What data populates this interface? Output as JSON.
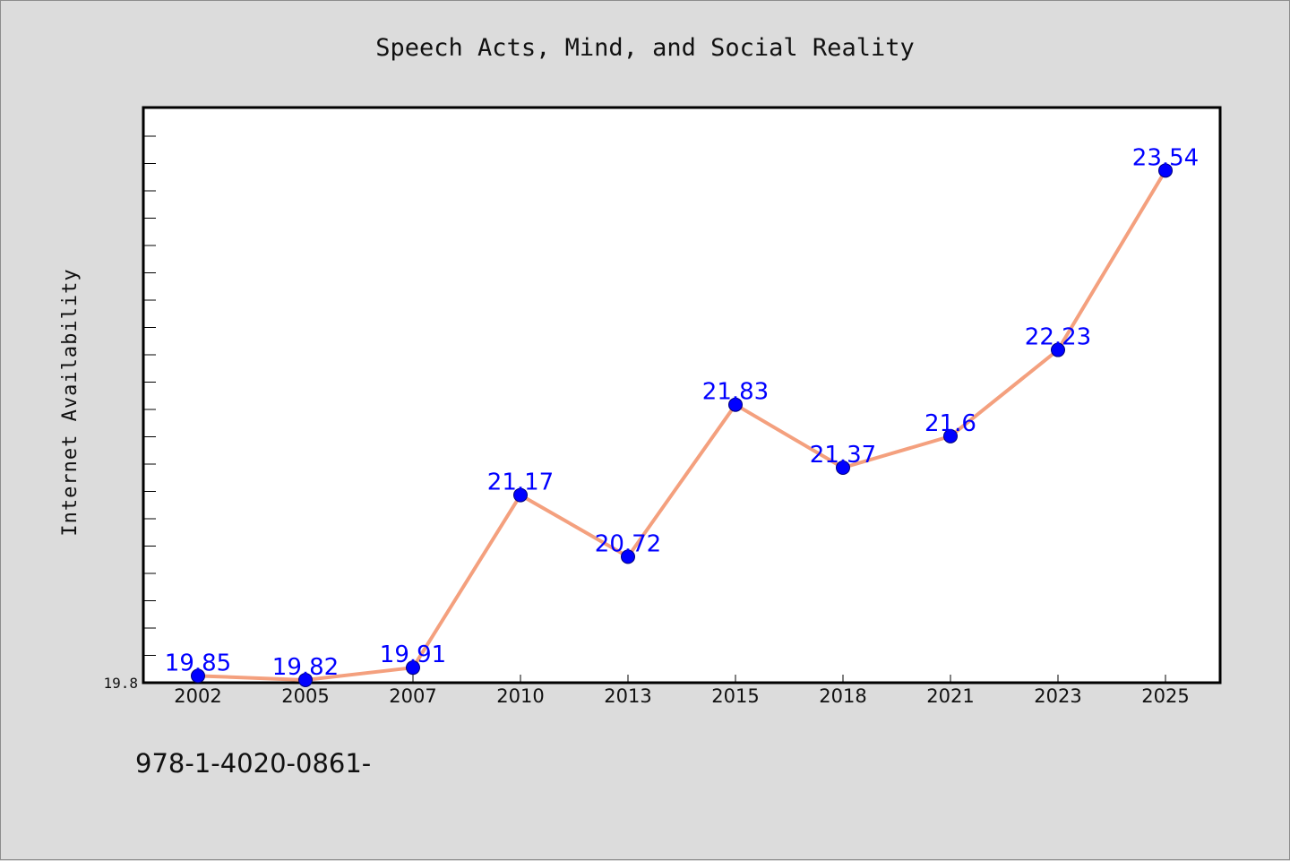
{
  "footer": {
    "text": "978-1-4020-0861-"
  },
  "colors": {
    "background": "#dcdcdc",
    "plot_background": "#ffffff",
    "line": "#f4a07e",
    "marker": "#0000ff",
    "data_label": "#0000ff"
  },
  "chart_data": {
    "type": "line",
    "title": "Speech Acts, Mind, and Social Reality",
    "xlabel": "",
    "ylabel": "Internet Availability",
    "categories": [
      "2002",
      "2005",
      "2007",
      "2010",
      "2013",
      "2015",
      "2018",
      "2021",
      "2023",
      "2025"
    ],
    "series": [
      {
        "values": [
          19.85,
          19.82,
          19.91,
          21.17,
          20.72,
          21.83,
          21.37,
          21.6,
          22.23,
          23.54
        ]
      }
    ],
    "data_labels": [
      "19.85",
      "19.82",
      "19.91",
      "21.17",
      "20.72",
      "21.83",
      "21.37",
      "21.6",
      "22.23",
      "23.54"
    ],
    "yticks": [
      19.8
    ],
    "ytick_labels": [
      "19.8"
    ],
    "ylim": [
      19.8,
      24.0
    ],
    "grid": false,
    "marker": "circle"
  }
}
